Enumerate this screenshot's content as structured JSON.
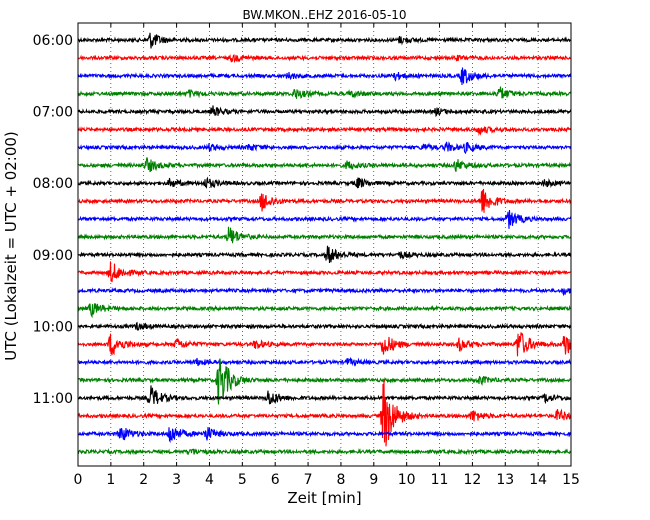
{
  "chart_data": {
    "type": "line",
    "title": "BW.MKON..EHZ 2016-05-10",
    "xlabel": "Zeit  [min]",
    "ylabel": "UTC (Lokalzeit = UTC + 02:00)",
    "xlim": [
      0,
      15
    ],
    "x_ticks": [
      "0",
      "1",
      "2",
      "3",
      "4",
      "5",
      "6",
      "7",
      "8",
      "9",
      "10",
      "11",
      "12",
      "13",
      "14",
      "15"
    ],
    "ylim_hours": [
      "05:50",
      "11:50"
    ],
    "y_ticks": [
      "06:00",
      "07:00",
      "08:00",
      "09:00",
      "10:00",
      "11:00"
    ],
    "trace_interval_min": 15,
    "grid": "vertical dotted lines at each minute",
    "trace_colors": [
      "#000000",
      "#ff0000",
      "#0000ff",
      "#008000"
    ],
    "traces": [
      {
        "start": "06:00",
        "color": "#000000",
        "events_min": [
          {
            "x": 2.2,
            "amp": 8
          },
          {
            "x": 9.8,
            "amp": 3
          }
        ]
      },
      {
        "start": "06:15",
        "color": "#ff0000",
        "events_min": [
          {
            "x": 4.7,
            "amp": 3
          },
          {
            "x": 11.5,
            "amp": 2
          }
        ]
      },
      {
        "start": "06:30",
        "color": "#0000ff",
        "events_min": [
          {
            "x": 6.4,
            "amp": 3
          },
          {
            "x": 9.6,
            "amp": 4
          },
          {
            "x": 11.7,
            "amp": 9
          }
        ]
      },
      {
        "start": "06:45",
        "color": "#008000",
        "events_min": [
          {
            "x": 3.4,
            "amp": 3
          },
          {
            "x": 6.6,
            "amp": 5
          },
          {
            "x": 8.3,
            "amp": 3
          },
          {
            "x": 12.8,
            "amp": 7
          }
        ]
      },
      {
        "start": "07:00",
        "color": "#000000",
        "events_min": [
          {
            "x": 4.1,
            "amp": 5
          },
          {
            "x": 10.9,
            "amp": 3
          }
        ]
      },
      {
        "start": "07:15",
        "color": "#ff0000",
        "events_min": [
          {
            "x": 12.2,
            "amp": 4
          }
        ]
      },
      {
        "start": "07:30",
        "color": "#0000ff",
        "events_min": [
          {
            "x": 4.0,
            "amp": 3
          },
          {
            "x": 5.2,
            "amp": 3
          },
          {
            "x": 10.5,
            "amp": 3
          },
          {
            "x": 11.2,
            "amp": 4
          },
          {
            "x": 11.8,
            "amp": 4
          }
        ]
      },
      {
        "start": "07:45",
        "color": "#008000",
        "events_min": [
          {
            "x": 2.1,
            "amp": 7
          },
          {
            "x": 8.2,
            "amp": 4
          },
          {
            "x": 11.5,
            "amp": 6
          }
        ]
      },
      {
        "start": "08:00",
        "color": "#000000",
        "events_min": [
          {
            "x": 2.8,
            "amp": 4
          },
          {
            "x": 3.9,
            "amp": 5
          },
          {
            "x": 8.5,
            "amp": 5
          },
          {
            "x": 14.2,
            "amp": 3
          }
        ]
      },
      {
        "start": "08:15",
        "color": "#ff0000",
        "events_min": [
          {
            "x": 5.6,
            "amp": 10
          },
          {
            "x": 12.3,
            "amp": 14
          }
        ]
      },
      {
        "start": "08:30",
        "color": "#0000ff",
        "events_min": [
          {
            "x": 13.1,
            "amp": 9
          }
        ]
      },
      {
        "start": "08:45",
        "color": "#008000",
        "events_min": [
          {
            "x": 4.6,
            "amp": 10
          }
        ]
      },
      {
        "start": "09:00",
        "color": "#000000",
        "events_min": [
          {
            "x": 7.6,
            "amp": 9
          },
          {
            "x": 9.8,
            "amp": 3
          }
        ]
      },
      {
        "start": "09:15",
        "color": "#ff0000",
        "events_min": [
          {
            "x": 1.0,
            "amp": 11
          }
        ]
      },
      {
        "start": "09:30",
        "color": "#0000ff",
        "events_min": [
          {
            "x": 14.8,
            "amp": 3
          }
        ]
      },
      {
        "start": "09:45",
        "color": "#008000",
        "events_min": [
          {
            "x": 0.4,
            "amp": 7
          }
        ]
      },
      {
        "start": "10:00",
        "color": "#000000",
        "events_min": [
          {
            "x": 1.8,
            "amp": 3
          }
        ]
      },
      {
        "start": "10:15",
        "color": "#ff0000",
        "events_min": [
          {
            "x": 1.0,
            "amp": 12
          },
          {
            "x": 3.0,
            "amp": 5
          },
          {
            "x": 5.4,
            "amp": 4
          },
          {
            "x": 9.3,
            "amp": 12
          },
          {
            "x": 11.6,
            "amp": 6
          },
          {
            "x": 13.4,
            "amp": 16
          },
          {
            "x": 14.8,
            "amp": 12
          }
        ]
      },
      {
        "start": "10:30",
        "color": "#0000ff",
        "events_min": [
          {
            "x": 3.6,
            "amp": 3
          },
          {
            "x": 8.2,
            "amp": 3
          }
        ]
      },
      {
        "start": "10:45",
        "color": "#008000",
        "events_min": [
          {
            "x": 4.3,
            "amp": 28
          },
          {
            "x": 12.2,
            "amp": 4
          }
        ]
      },
      {
        "start": "11:00",
        "color": "#000000",
        "events_min": [
          {
            "x": 2.2,
            "amp": 12
          },
          {
            "x": 5.8,
            "amp": 8
          },
          {
            "x": 14.2,
            "amp": 4
          }
        ]
      },
      {
        "start": "11:15",
        "color": "#ff0000",
        "events_min": [
          {
            "x": 9.3,
            "amp": 40
          },
          {
            "x": 12.0,
            "amp": 6
          },
          {
            "x": 14.6,
            "amp": 6
          }
        ]
      },
      {
        "start": "11:30",
        "color": "#0000ff",
        "events_min": [
          {
            "x": 1.3,
            "amp": 8
          },
          {
            "x": 2.8,
            "amp": 10
          },
          {
            "x": 3.9,
            "amp": 7
          }
        ]
      },
      {
        "start": "11:45",
        "color": "#008000",
        "events_min": [
          {
            "x": 3.4,
            "amp": 3
          }
        ]
      }
    ]
  }
}
